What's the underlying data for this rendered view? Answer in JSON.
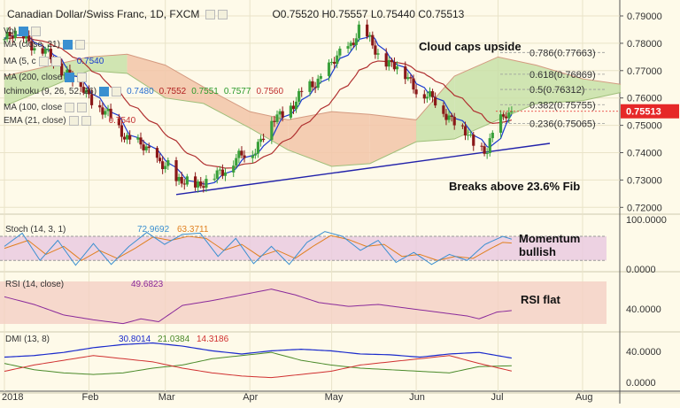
{
  "header": {
    "instrument": "Canadian Dollar/Swiss Franc, 1D, FXCM",
    "open": "O0.75520",
    "high": "H0.75557",
    "low": "L0.75440",
    "close": "C0.75513"
  },
  "overlays": [
    {
      "label": "Vol",
      "values": []
    },
    {
      "label": "MA (close, 21)",
      "values": []
    },
    {
      "label": "MA (5, c",
      "values": [
        "0.7540"
      ],
      "colors": [
        "#1a3ad0"
      ]
    },
    {
      "label": "MA (200, close",
      "values": []
    },
    {
      "label": "MA (100, close",
      "values": []
    },
    {
      "label": "Ichimoku (9, 26, 52, 26)",
      "values": [
        "0.7480",
        "0.7552",
        "0.7551",
        "0.7577",
        "0.7560"
      ],
      "colors": [
        "#2a6fd0",
        "#b02020",
        "#2a9a2a",
        "#2a9a2a",
        "#c03030"
      ]
    },
    {
      "label": "EMA (21, close)",
      "values": [
        "0.7540"
      ],
      "colors": [
        "#c03030"
      ]
    }
  ],
  "price_axis": {
    "ticks": [
      "0.79000",
      "0.78000",
      "0.77000",
      "0.76000",
      "0.75000",
      "0.74000",
      "0.73000",
      "0.72000"
    ],
    "current_label": "0.75513"
  },
  "annotations": {
    "cloud": "Cloud caps upside",
    "breaks": "Breaks above 23.6% Fib",
    "momentum": "Momentum bullish",
    "rsi": "RSI flat"
  },
  "fib_levels": [
    {
      "label": "0.786(0.77663)",
      "value": 0.77663
    },
    {
      "label": "0.618(0.76869)",
      "value": 0.76869
    },
    {
      "label": "0.5(0.76312)",
      "value": 0.76312
    },
    {
      "label": "0.382(0.75755)",
      "value": 0.75755
    },
    {
      "label": "0.236(0.75065)",
      "value": 0.75065
    }
  ],
  "stoch": {
    "label": "Stoch (14, 3, 1)",
    "k": "72.9692",
    "d": "63.3711",
    "ticks": [
      "100.0000",
      "0.0000"
    ]
  },
  "rsi": {
    "label": "RSI (14, close)",
    "value": "49.6823",
    "ticks": [
      "40.0000"
    ]
  },
  "dmi": {
    "label": "DMI (13, 8)",
    "adx": "30.8014",
    "plus_di": "21.0384",
    "minus_di": "14.3186",
    "ticks": [
      "40.0000",
      "0.0000"
    ]
  },
  "time_axis": [
    "2018",
    "Feb",
    "Mar",
    "Apr",
    "May",
    "Jun",
    "Jul",
    "Aug"
  ],
  "colors": {
    "bull": "#3aa03a",
    "bear": "#8a1818",
    "blue": "#1a3ad0",
    "ema": "#b03030",
    "cloud_green": "#c8e0a8",
    "cloud_red": "#f2c4a8",
    "price_tag": "#e62828",
    "bg": "#fefae9"
  },
  "chart_data": {
    "type": "candlestick",
    "x_range": [
      "2018-01-01",
      "2018-08-20"
    ],
    "ylim": [
      0.72,
      0.79
    ],
    "anchors": [
      [
        "2018-01-01",
        0.7815
      ],
      [
        "2018-01-08",
        0.7835
      ],
      [
        "2018-01-12",
        0.779
      ],
      [
        "2018-01-19",
        0.774
      ],
      [
        "2018-01-26",
        0.767
      ],
      [
        "2018-02-02",
        0.76
      ],
      [
        "2018-02-09",
        0.752
      ],
      [
        "2018-02-16",
        0.745
      ],
      [
        "2018-02-23",
        0.74
      ],
      [
        "2018-03-02",
        0.735
      ],
      [
        "2018-03-05",
        0.728
      ],
      [
        "2018-03-09",
        0.731
      ],
      [
        "2018-03-14",
        0.727
      ],
      [
        "2018-03-20",
        0.733
      ],
      [
        "2018-03-27",
        0.737
      ],
      [
        "2018-04-03",
        0.742
      ],
      [
        "2018-04-10",
        0.752
      ],
      [
        "2018-04-17",
        0.758
      ],
      [
        "2018-04-24",
        0.765
      ],
      [
        "2018-05-01",
        0.772
      ],
      [
        "2018-05-08",
        0.78
      ],
      [
        "2018-05-11",
        0.7855
      ],
      [
        "2018-05-18",
        0.776
      ],
      [
        "2018-05-25",
        0.771
      ],
      [
        "2018-06-01",
        0.764
      ],
      [
        "2018-06-08",
        0.758
      ],
      [
        "2018-06-15",
        0.752
      ],
      [
        "2018-06-22",
        0.743
      ],
      [
        "2018-06-27",
        0.7415
      ],
      [
        "2018-06-30",
        0.748
      ],
      [
        "2018-07-04",
        0.7545
      ],
      [
        "2018-07-06",
        0.75513
      ]
    ],
    "cloud": [
      [
        "2018-01-01",
        0.757,
        0.768
      ],
      [
        "2018-02-01",
        0.77,
        0.775
      ],
      [
        "2018-02-15",
        0.769,
        0.776
      ],
      [
        "2018-03-01",
        0.76,
        0.772
      ],
      [
        "2018-03-15",
        0.758,
        0.764
      ],
      [
        "2018-04-01",
        0.749,
        0.755
      ],
      [
        "2018-04-15",
        0.741,
        0.752
      ],
      [
        "2018-05-01",
        0.735,
        0.755
      ],
      [
        "2018-05-15",
        0.736,
        0.754
      ],
      [
        "2018-06-01",
        0.744,
        0.752
      ],
      [
        "2018-06-15",
        0.745,
        0.768
      ],
      [
        "2018-07-01",
        0.752,
        0.775
      ],
      [
        "2018-07-15",
        0.758,
        0.772
      ],
      [
        "2018-08-01",
        0.759,
        0.767
      ],
      [
        "2018-08-15",
        0.762,
        0.765
      ]
    ],
    "trendline": [
      [
        "2018-03-05",
        0.7247
      ],
      [
        "2018-07-20",
        0.7434
      ]
    ],
    "stoch": {
      "overbought": 80,
      "oversold": 20,
      "k_anchors": [
        [
          0,
          55
        ],
        [
          6,
          88
        ],
        [
          12,
          20
        ],
        [
          18,
          70
        ],
        [
          24,
          8
        ],
        [
          30,
          62
        ],
        [
          36,
          10
        ],
        [
          42,
          55
        ],
        [
          48,
          90
        ],
        [
          54,
          60
        ],
        [
          60,
          85
        ],
        [
          66,
          88
        ],
        [
          72,
          30
        ],
        [
          78,
          75
        ],
        [
          84,
          12
        ],
        [
          90,
          55
        ],
        [
          96,
          10
        ],
        [
          102,
          65
        ],
        [
          108,
          92
        ],
        [
          114,
          80
        ],
        [
          120,
          45
        ],
        [
          126,
          70
        ],
        [
          132,
          15
        ],
        [
          138,
          40
        ],
        [
          144,
          10
        ],
        [
          150,
          35
        ],
        [
          156,
          20
        ],
        [
          162,
          60
        ],
        [
          168,
          80
        ],
        [
          171,
          72.97
        ]
      ],
      "d_anchors": [
        [
          0,
          50
        ],
        [
          8,
          70
        ],
        [
          14,
          35
        ],
        [
          20,
          55
        ],
        [
          26,
          20
        ],
        [
          32,
          45
        ],
        [
          38,
          25
        ],
        [
          44,
          50
        ],
        [
          50,
          78
        ],
        [
          56,
          70
        ],
        [
          62,
          80
        ],
        [
          68,
          75
        ],
        [
          74,
          45
        ],
        [
          80,
          60
        ],
        [
          86,
          30
        ],
        [
          92,
          45
        ],
        [
          98,
          25
        ],
        [
          104,
          55
        ],
        [
          110,
          82
        ],
        [
          116,
          72
        ],
        [
          122,
          55
        ],
        [
          128,
          60
        ],
        [
          134,
          30
        ],
        [
          140,
          35
        ],
        [
          146,
          20
        ],
        [
          152,
          30
        ],
        [
          158,
          25
        ],
        [
          164,
          50
        ],
        [
          168,
          65
        ],
        [
          171,
          63.37
        ]
      ]
    },
    "rsi": {
      "ylim": [
        32,
        80
      ],
      "zone": [
        30,
        70
      ],
      "anchors": [
        [
          0,
          64
        ],
        [
          10,
          56
        ],
        [
          20,
          45
        ],
        [
          30,
          40
        ],
        [
          40,
          36
        ],
        [
          46,
          41
        ],
        [
          52,
          38
        ],
        [
          60,
          55
        ],
        [
          70,
          60
        ],
        [
          80,
          66
        ],
        [
          90,
          72
        ],
        [
          98,
          66
        ],
        [
          106,
          58
        ],
        [
          116,
          54
        ],
        [
          126,
          56
        ],
        [
          136,
          52
        ],
        [
          146,
          48
        ],
        [
          156,
          44
        ],
        [
          160,
          41
        ],
        [
          166,
          48
        ],
        [
          171,
          49.68
        ]
      ]
    },
    "dmi": {
      "ylim": [
        0,
        55
      ],
      "adx_anchors": [
        [
          0,
          32
        ],
        [
          10,
          34
        ],
        [
          20,
          38
        ],
        [
          30,
          44
        ],
        [
          40,
          48
        ],
        [
          50,
          50
        ],
        [
          60,
          46
        ],
        [
          70,
          40
        ],
        [
          80,
          36
        ],
        [
          90,
          40
        ],
        [
          100,
          42
        ],
        [
          110,
          40
        ],
        [
          120,
          36
        ],
        [
          130,
          35
        ],
        [
          140,
          32
        ],
        [
          150,
          36
        ],
        [
          160,
          38
        ],
        [
          171,
          30.8
        ]
      ],
      "plus_anchors": [
        [
          0,
          24
        ],
        [
          10,
          16
        ],
        [
          20,
          12
        ],
        [
          30,
          10
        ],
        [
          40,
          12
        ],
        [
          50,
          18
        ],
        [
          60,
          22
        ],
        [
          70,
          30
        ],
        [
          80,
          34
        ],
        [
          90,
          38
        ],
        [
          100,
          28
        ],
        [
          110,
          22
        ],
        [
          120,
          18
        ],
        [
          130,
          16
        ],
        [
          140,
          14
        ],
        [
          150,
          12
        ],
        [
          160,
          20
        ],
        [
          171,
          21.04
        ]
      ],
      "minus_anchors": [
        [
          0,
          14
        ],
        [
          10,
          22
        ],
        [
          20,
          28
        ],
        [
          30,
          34
        ],
        [
          40,
          30
        ],
        [
          50,
          26
        ],
        [
          60,
          18
        ],
        [
          70,
          12
        ],
        [
          80,
          8
        ],
        [
          90,
          6
        ],
        [
          100,
          10
        ],
        [
          110,
          14
        ],
        [
          120,
          22
        ],
        [
          130,
          26
        ],
        [
          140,
          30
        ],
        [
          150,
          34
        ],
        [
          160,
          24
        ],
        [
          171,
          14.32
        ]
      ]
    }
  }
}
